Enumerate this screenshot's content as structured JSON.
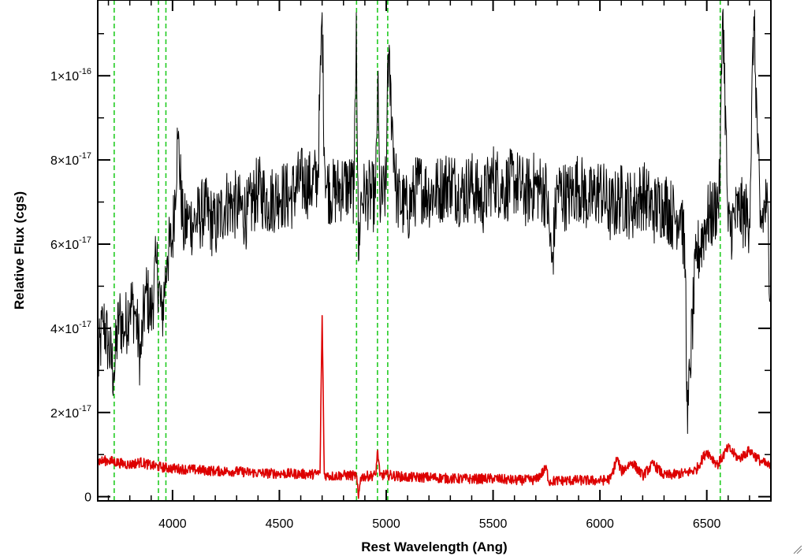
{
  "chart_data": {
    "type": "line",
    "title": "",
    "xlabel": "Rest Wavelength (Ang)",
    "ylabel": "Relative Flux (cgs)",
    "xlim": [
      3650,
      6800
    ],
    "ylim": [
      -1e-18,
      1.18e-16
    ],
    "x_ticks": [
      4000,
      4500,
      5000,
      5500,
      6000,
      6500
    ],
    "x_tick_labels": [
      "4000",
      "4500",
      "5000",
      "5500",
      "6000",
      "6500"
    ],
    "y_ticks": [
      {
        "value": 0,
        "mantissa": "0",
        "exponent": ""
      },
      {
        "value": 2e-17,
        "mantissa": "2×10",
        "exponent": "-17"
      },
      {
        "value": 4e-17,
        "mantissa": "4×10",
        "exponent": "-17"
      },
      {
        "value": 6e-17,
        "mantissa": "6×10",
        "exponent": "-17"
      },
      {
        "value": 8e-17,
        "mantissa": "8×10",
        "exponent": "-17"
      },
      {
        "value": 1e-16,
        "mantissa": "1×10",
        "exponent": "-16"
      }
    ],
    "reference_lines": {
      "color": "#22cc22",
      "style": "dashed",
      "x": [
        3727,
        3934,
        3969,
        4861,
        4959,
        5007,
        6563
      ]
    },
    "series": [
      {
        "color": "#000000",
        "x": [
          3650,
          3675,
          3700,
          3725,
          3750,
          3775,
          3800,
          3825,
          3850,
          3875,
          3900,
          3925,
          3950,
          3975,
          4000,
          4025,
          4050,
          4075,
          4100,
          4150,
          4200,
          4250,
          4300,
          4350,
          4400,
          4450,
          4500,
          4550,
          4600,
          4650,
          4680,
          4700,
          4710,
          4720,
          4750,
          4800,
          4850,
          4860,
          4870,
          4880,
          4900,
          4950,
          4960,
          4970,
          5000,
          5007,
          5050,
          5100,
          5150,
          5200,
          5250,
          5300,
          5350,
          5400,
          5450,
          5500,
          5550,
          5600,
          5650,
          5700,
          5750,
          5775,
          5800,
          5850,
          5900,
          5950,
          6000,
          6050,
          6100,
          6150,
          6200,
          6250,
          6300,
          6350,
          6380,
          6400,
          6410,
          6420,
          6450,
          6500,
          6530,
          6560,
          6575,
          6600,
          6650,
          6700,
          6720,
          6750,
          6780,
          6800
        ],
        "y": [
          3e-17,
          4.2e-17,
          3.6e-17,
          2.9e-17,
          4.3e-17,
          3.9e-17,
          4.6e-17,
          4.4e-17,
          3.3e-17,
          4.9e-17,
          4.3e-17,
          5.6e-17,
          4.2e-17,
          5.7e-17,
          6.1e-17,
          8.6e-17,
          6.3e-17,
          6.6e-17,
          6.5e-17,
          6.8e-17,
          6.4e-17,
          7e-17,
          6.9e-17,
          6.7e-17,
          7.3e-17,
          7e-17,
          7.2e-17,
          7.1e-17,
          7.5e-17,
          7.4e-17,
          7.6e-17,
          1.15e-16,
          8.3e-17,
          7.4e-17,
          7.2e-17,
          7.4e-17,
          7.3e-17,
          1.15e-16,
          5.6e-17,
          7e-17,
          7.2e-17,
          7.1e-17,
          9.9e-17,
          7e-17,
          7.3e-17,
          1.06e-16,
          7.1e-17,
          6.8e-17,
          7.4e-17,
          7.2e-17,
          7.3e-17,
          7.5e-17,
          7.2e-17,
          7.4e-17,
          7e-17,
          7.6e-17,
          7.3e-17,
          7.5e-17,
          7.2e-17,
          7.4e-17,
          7.2e-17,
          5.5e-17,
          7.3e-17,
          7.1e-17,
          7.4e-17,
          7e-17,
          7.3e-17,
          6.8e-17,
          7.1e-17,
          6.9e-17,
          7.2e-17,
          6.8e-17,
          7e-17,
          6.6e-17,
          6.9e-17,
          5.4e-17,
          1.5e-17,
          3e-17,
          5.6e-17,
          6.6e-17,
          6.7e-17,
          7.2e-17,
          1.18e-16,
          6.3e-17,
          6.8e-17,
          6.6e-17,
          1.14e-16,
          6.4e-17,
          7e-17,
          4.8e-17
        ]
      },
      {
        "color": "#dd0000",
        "x": [
          3650,
          3700,
          3750,
          3800,
          3850,
          3900,
          3950,
          4000,
          4100,
          4200,
          4300,
          4400,
          4500,
          4600,
          4650,
          4690,
          4700,
          4710,
          4720,
          4750,
          4800,
          4850,
          4860,
          4870,
          4880,
          4900,
          4950,
          4960,
          4970,
          5000,
          5100,
          5200,
          5300,
          5400,
          5500,
          5600,
          5700,
          5750,
          5760,
          5800,
          5900,
          6000,
          6050,
          6080,
          6100,
          6150,
          6200,
          6250,
          6300,
          6400,
          6450,
          6500,
          6550,
          6600,
          6650,
          6700,
          6750,
          6800
        ],
        "y": [
          8.4e-18,
          8.6e-18,
          8e-18,
          7.6e-18,
          8.2e-18,
          7.4e-18,
          7e-18,
          6.7e-18,
          6.4e-18,
          6.1e-18,
          6e-18,
          5.6e-18,
          5.5e-18,
          5.4e-18,
          5.3e-18,
          5.6e-18,
          4.3e-17,
          5.4e-18,
          5e-18,
          4.9e-18,
          5.1e-18,
          5e-18,
          5.2e-18,
          -4e-19,
          4.6e-18,
          4.8e-18,
          5.1e-18,
          1.1e-17,
          5e-18,
          5.2e-18,
          4.6e-18,
          4.6e-18,
          4.3e-18,
          4.2e-18,
          4.3e-18,
          3.9e-18,
          4e-18,
          6.8e-18,
          3.6e-18,
          3.8e-18,
          3.9e-18,
          3.8e-18,
          4.2e-18,
          9.2e-18,
          6e-18,
          8.2e-18,
          5e-18,
          7.8e-18,
          5e-18,
          5.6e-18,
          6.4e-18,
          1.08e-17,
          7.6e-18,
          1.16e-17,
          9e-18,
          1.1e-17,
          8.5e-18,
          7e-18
        ]
      }
    ]
  }
}
